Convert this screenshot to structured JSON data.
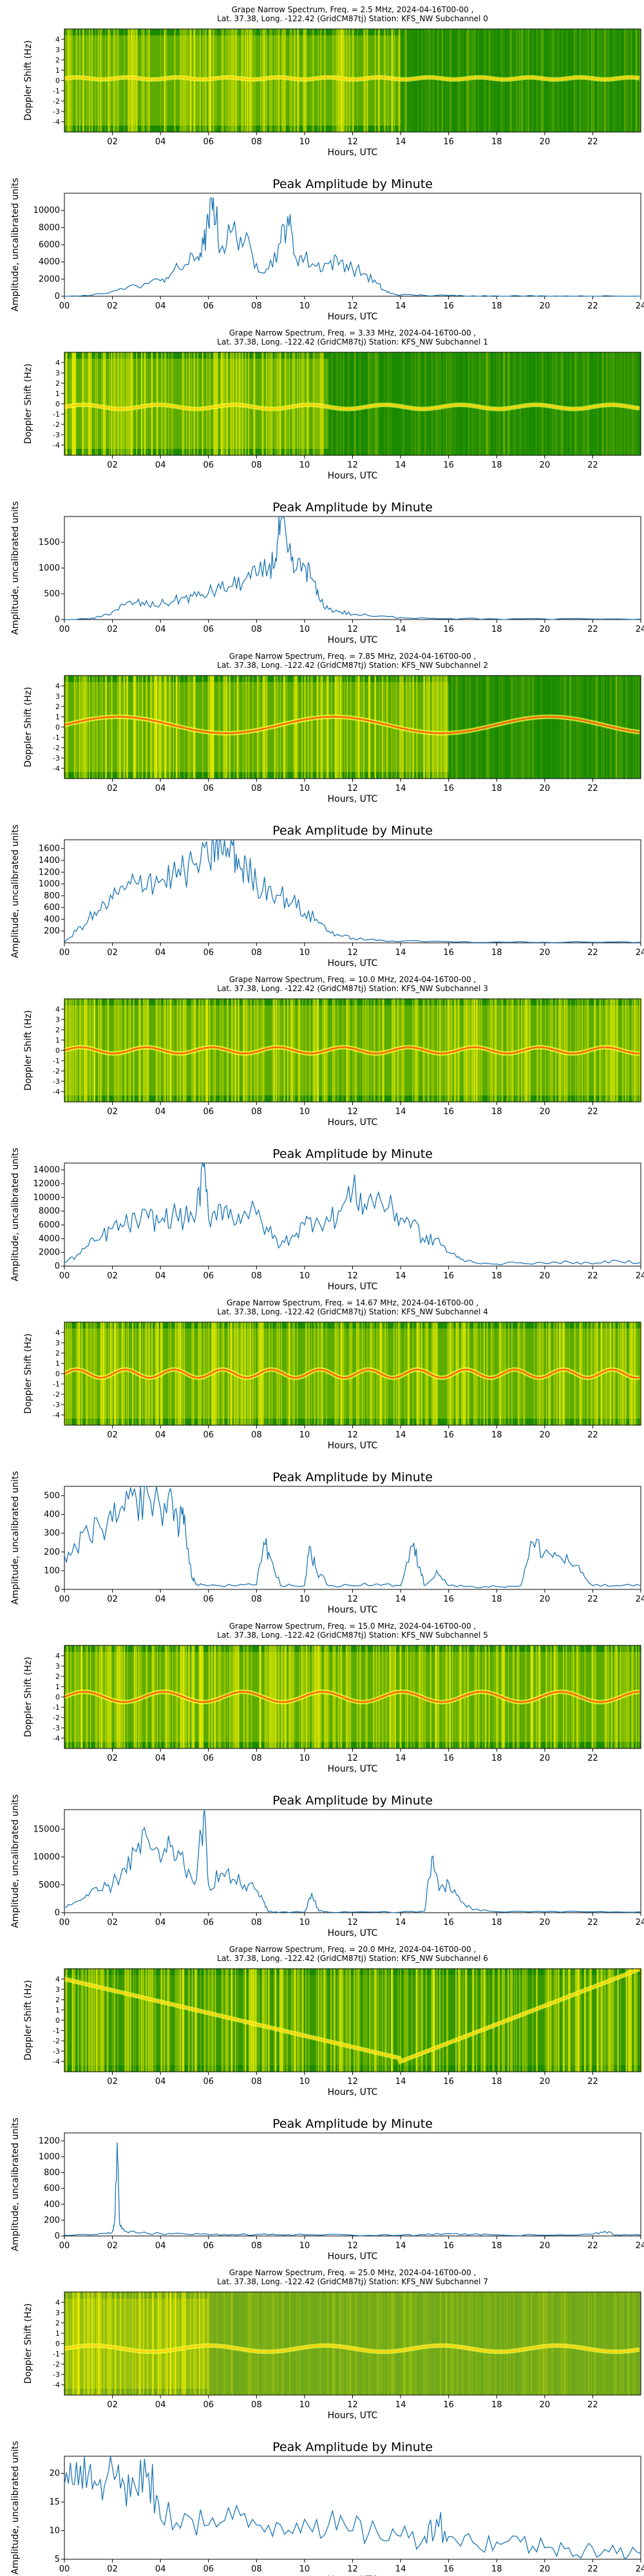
{
  "chart_data": [
    {
      "type": "heatmap",
      "subchannel": 0,
      "title": [
        "Grape Narrow Spectrum, Freq. = 2.5 MHz, 2024-04-16T00-00 ,",
        "Lat.  37.38, Long. -122.42 (GridCM87tj) Station: KFS_NW Subchannel 0"
      ],
      "xlabel": "Hours, UTC",
      "ylabel": "Doppler Shift (Hz)",
      "xticks": [
        "02",
        "04",
        "06",
        "08",
        "10",
        "12",
        "14",
        "16",
        "18",
        "20",
        "22"
      ],
      "yticks": [
        "4",
        "3",
        "2",
        "1",
        "0",
        "-1",
        "-2",
        "-3",
        "-4"
      ],
      "xlim": [
        0,
        24
      ],
      "ylim": [
        -5,
        5
      ]
    },
    {
      "type": "line",
      "subchannel": 0,
      "title": "Peak Amplitude by Minute",
      "xlabel": "Hours, UTC",
      "ylabel": "Amplitude, uncalibrated units",
      "xlim": [
        0,
        24
      ],
      "ylim": [
        0,
        12000
      ],
      "yticks": [
        0,
        2000,
        4000,
        6000,
        8000,
        10000
      ],
      "x": [
        0,
        1,
        2,
        3,
        4,
        4.5,
        5,
        5.5,
        5.8,
        6,
        6.2,
        6.5,
        7,
        7.5,
        8,
        8.5,
        9,
        9.3,
        9.6,
        10,
        10.5,
        11,
        11.5,
        12,
        12.5,
        13,
        13.3,
        13.6,
        14,
        15,
        16,
        17,
        18,
        19,
        20,
        21,
        22,
        23,
        24
      ],
      "y": [
        0,
        50,
        600,
        1200,
        1800,
        2800,
        3600,
        4500,
        6000,
        8300,
        11500,
        5400,
        7700,
        6400,
        3800,
        3200,
        6200,
        9300,
        4700,
        4400,
        3500,
        3800,
        4100,
        3200,
        2600,
        1500,
        700,
        300,
        150,
        100,
        80,
        50,
        40,
        30,
        20,
        15,
        10,
        10,
        10
      ]
    },
    {
      "type": "heatmap",
      "subchannel": 1,
      "title": [
        "Grape Narrow Spectrum, Freq. = 3.33 MHz, 2024-04-16T00-00 ,",
        "Lat.  37.38, Long. -122.42 (GridCM87tj) Station: KFS_NW Subchannel 1"
      ],
      "xlabel": "Hours, UTC",
      "ylabel": "Doppler Shift (Hz)",
      "xticks": [
        "02",
        "04",
        "06",
        "08",
        "10",
        "12",
        "14",
        "16",
        "18",
        "20",
        "22"
      ],
      "yticks": [
        "4",
        "3",
        "2",
        "1",
        "0",
        "-1",
        "-2",
        "-3",
        "-4"
      ],
      "xlim": [
        0,
        24
      ],
      "ylim": [
        -5,
        5
      ]
    },
    {
      "type": "line",
      "subchannel": 1,
      "title": "Peak Amplitude by Minute",
      "xlabel": "Hours, UTC",
      "ylabel": "Amplitude, uncalibrated units",
      "xlim": [
        0,
        24
      ],
      "ylim": [
        0,
        2000
      ],
      "yticks": [
        0,
        500,
        1000,
        1500
      ],
      "x": [
        0,
        1,
        1.5,
        2,
        2.5,
        3,
        3.5,
        4,
        4.5,
        5,
        5.5,
        6,
        6.5,
        7,
        7.5,
        8,
        8.5,
        8.8,
        9,
        9.3,
        9.6,
        10,
        10.3,
        10.6,
        11,
        11.5,
        12,
        13,
        14,
        15,
        16,
        18,
        20,
        22,
        24
      ],
      "y": [
        0,
        10,
        50,
        150,
        280,
        330,
        280,
        300,
        350,
        420,
        450,
        520,
        600,
        650,
        760,
        850,
        1000,
        1200,
        1900,
        1300,
        950,
        1050,
        800,
        400,
        200,
        150,
        100,
        60,
        40,
        30,
        20,
        10,
        10,
        10,
        10
      ]
    },
    {
      "type": "heatmap",
      "subchannel": 2,
      "title": [
        "Grape Narrow Spectrum, Freq. = 7.85 MHz, 2024-04-16T00-00 ,",
        "Lat.  37.38, Long. -122.42 (GridCM87tj) Station: KFS_NW Subchannel 2"
      ],
      "xlabel": "Hours, UTC",
      "ylabel": "Doppler Shift (Hz)",
      "xticks": [
        "02",
        "04",
        "06",
        "08",
        "10",
        "12",
        "14",
        "16",
        "18",
        "20",
        "22"
      ],
      "yticks": [
        "4",
        "3",
        "2",
        "1",
        "0",
        "-1",
        "-2",
        "-3",
        "-4"
      ],
      "xlim": [
        0,
        24
      ],
      "ylim": [
        -5,
        5
      ]
    },
    {
      "type": "line",
      "subchannel": 2,
      "title": "Peak Amplitude by Minute",
      "xlabel": "Hours, UTC",
      "ylabel": "Amplitude, uncalibrated units",
      "xlim": [
        0,
        24
      ],
      "ylim": [
        0,
        1750
      ],
      "yticks": [
        200,
        400,
        600,
        800,
        1000,
        1200,
        1400,
        1600
      ],
      "x": [
        0,
        0.5,
        1,
        1.5,
        2,
        2.5,
        3,
        3.5,
        4,
        4.5,
        5,
        5.5,
        6,
        6.3,
        6.6,
        7,
        7.3,
        7.6,
        8,
        8.5,
        9,
        9.5,
        10,
        10.5,
        11,
        11.5,
        12,
        13,
        14,
        16,
        18,
        20,
        22,
        24
      ],
      "y": [
        0,
        200,
        400,
        550,
        750,
        900,
        1000,
        1100,
        1050,
        1150,
        1200,
        1350,
        1400,
        1700,
        1500,
        1650,
        1300,
        1250,
        1000,
        950,
        800,
        700,
        500,
        400,
        200,
        120,
        80,
        40,
        25,
        20,
        15,
        10,
        10,
        10
      ]
    },
    {
      "type": "heatmap",
      "subchannel": 3,
      "title": [
        "Grape Narrow Spectrum, Freq. = 10.0 MHz, 2024-04-16T00-00 ,",
        "Lat.  37.38, Long. -122.42 (GridCM87tj) Station: KFS_NW Subchannel 3"
      ],
      "xlabel": "Hours, UTC",
      "ylabel": "Doppler Shift (Hz)",
      "xticks": [
        "02",
        "04",
        "06",
        "08",
        "10",
        "12",
        "14",
        "16",
        "18",
        "20",
        "22"
      ],
      "yticks": [
        "4",
        "3",
        "2",
        "1",
        "0",
        "-1",
        "-2",
        "-3",
        "-4"
      ],
      "xlim": [
        0,
        24
      ],
      "ylim": [
        -5,
        5
      ]
    },
    {
      "type": "line",
      "subchannel": 3,
      "title": "Peak Amplitude by Minute",
      "xlabel": "Hours, UTC",
      "ylabel": "Amplitude, uncalibrated units",
      "xlim": [
        0,
        24
      ],
      "ylim": [
        0,
        15000
      ],
      "yticks": [
        0,
        2000,
        4000,
        6000,
        8000,
        10000,
        12000,
        14000
      ],
      "x": [
        0,
        0.5,
        1,
        1.5,
        2,
        2.5,
        3,
        3.5,
        4,
        4.5,
        5,
        5.5,
        5.8,
        6,
        6.5,
        7,
        7.5,
        8,
        8.5,
        9,
        9.5,
        10,
        10.5,
        11,
        11.5,
        12,
        12.5,
        13,
        13.5,
        14,
        14.5,
        15,
        15.5,
        16,
        16.5,
        17,
        18,
        19,
        20,
        21,
        22,
        23,
        24
      ],
      "y": [
        500,
        1500,
        3000,
        4000,
        5500,
        6000,
        6500,
        7000,
        6500,
        7500,
        6800,
        8000,
        14500,
        7000,
        9000,
        7000,
        8000,
        7500,
        5000,
        3000,
        4500,
        6000,
        7000,
        6500,
        8000,
        11000,
        9000,
        10000,
        8500,
        7000,
        6500,
        3500,
        4000,
        2000,
        1000,
        600,
        300,
        500,
        400,
        600,
        300,
        800,
        500
      ]
    },
    {
      "type": "heatmap",
      "subchannel": 4,
      "title": [
        "Grape Narrow Spectrum, Freq. = 14.67 MHz, 2024-04-16T00-00 ,",
        "Lat.  37.38, Long. -122.42 (GridCM87tj) Station: KFS_NW Subchannel 4"
      ],
      "xlabel": "Hours, UTC",
      "ylabel": "Doppler Shift (Hz)",
      "xticks": [
        "02",
        "04",
        "06",
        "08",
        "10",
        "12",
        "14",
        "16",
        "18",
        "20",
        "22"
      ],
      "yticks": [
        "4",
        "3",
        "2",
        "1",
        "0",
        "-1",
        "-2",
        "-3",
        "-4"
      ],
      "xlim": [
        0,
        24
      ],
      "ylim": [
        -5,
        5
      ]
    },
    {
      "type": "line",
      "subchannel": 4,
      "title": "Peak Amplitude by Minute",
      "xlabel": "Hours, UTC",
      "ylabel": "Amplitude, uncalibrated units",
      "xlim": [
        0,
        24
      ],
      "ylim": [
        0,
        550
      ],
      "yticks": [
        0,
        100,
        200,
        300,
        400,
        500
      ],
      "x": [
        0,
        0.5,
        1,
        1.5,
        2,
        2.5,
        3,
        3.5,
        4,
        4.5,
        4.8,
        5,
        5.3,
        5.5,
        6,
        7,
        8,
        8.3,
        8.5,
        9,
        10,
        10.2,
        10.5,
        11,
        12,
        13,
        14,
        14.5,
        14.8,
        15,
        15.5,
        16,
        17,
        18,
        19,
        19.5,
        20,
        20.5,
        21,
        21.5,
        22,
        23,
        24
      ],
      "y": [
        180,
        220,
        300,
        330,
        360,
        420,
        480,
        500,
        430,
        470,
        350,
        400,
        60,
        30,
        20,
        20,
        25,
        250,
        200,
        20,
        20,
        230,
        100,
        20,
        20,
        30,
        20,
        230,
        120,
        20,
        100,
        20,
        15,
        15,
        20,
        250,
        200,
        180,
        150,
        90,
        20,
        20,
        20
      ]
    },
    {
      "type": "heatmap",
      "subchannel": 5,
      "title": [
        "Grape Narrow Spectrum, Freq. = 15.0 MHz, 2024-04-16T00-00 ,",
        "Lat.  37.38, Long. -122.42 (GridCM87tj) Station: KFS_NW Subchannel 5"
      ],
      "xlabel": "Hours, UTC",
      "ylabel": "Doppler Shift (Hz)",
      "xticks": [
        "02",
        "04",
        "06",
        "08",
        "10",
        "12",
        "14",
        "16",
        "18",
        "20",
        "22"
      ],
      "yticks": [
        "4",
        "3",
        "2",
        "1",
        "0",
        "-1",
        "-2",
        "-3",
        "-4"
      ],
      "xlim": [
        0,
        24
      ],
      "ylim": [
        -5,
        5
      ]
    },
    {
      "type": "line",
      "subchannel": 5,
      "title": "Peak Amplitude by Minute",
      "xlabel": "Hours, UTC",
      "ylabel": "Amplitude, uncalibrated units",
      "xlim": [
        0,
        24
      ],
      "ylim": [
        0,
        18500
      ],
      "yticks": [
        0,
        5000,
        10000,
        15000
      ],
      "x": [
        0,
        0.5,
        1,
        1.5,
        2,
        2.5,
        3,
        3.5,
        4,
        4.5,
        5,
        5.5,
        5.8,
        6,
        6.5,
        7,
        7.5,
        8,
        8.3,
        8.5,
        9,
        10,
        10.3,
        10.6,
        11,
        12,
        14,
        15,
        15.3,
        15.6,
        16,
        16.5,
        17,
        18,
        20,
        22,
        24
      ],
      "y": [
        1000,
        2000,
        3000,
        4000,
        5000,
        8000,
        11000,
        13000,
        9000,
        12000,
        8000,
        6000,
        17800,
        5000,
        7000,
        6000,
        5000,
        4000,
        2000,
        200,
        100,
        100,
        3500,
        300,
        100,
        100,
        100,
        300,
        10000,
        4000,
        5500,
        2000,
        500,
        200,
        150,
        150,
        150
      ]
    },
    {
      "type": "heatmap",
      "subchannel": 6,
      "title": [
        "Grape Narrow Spectrum, Freq. = 20.0 MHz, 2024-04-16T00-00 ,",
        "Lat.  37.38, Long. -122.42 (GridCM87tj) Station: KFS_NW Subchannel 6"
      ],
      "xlabel": "Hours, UTC",
      "ylabel": "Doppler Shift (Hz)",
      "xticks": [
        "02",
        "04",
        "06",
        "08",
        "10",
        "12",
        "14",
        "16",
        "18",
        "20",
        "22"
      ],
      "yticks": [
        "4",
        "3",
        "2",
        "1",
        "0",
        "-1",
        "-2",
        "-3",
        "-4"
      ],
      "xlim": [
        0,
        24
      ],
      "ylim": [
        -5,
        5
      ]
    },
    {
      "type": "line",
      "subchannel": 6,
      "title": "Peak Amplitude by Minute",
      "xlabel": "Hours, UTC",
      "ylabel": "Amplitude, uncalibrated units",
      "xlim": [
        0,
        24
      ],
      "ylim": [
        0,
        1300
      ],
      "yticks": [
        0,
        200,
        400,
        600,
        800,
        1000,
        1200
      ],
      "x": [
        0,
        1,
        1.5,
        2,
        2.1,
        2.2,
        2.3,
        2.5,
        3,
        4,
        5,
        6,
        7,
        8,
        9,
        10,
        12,
        14,
        15,
        16,
        17,
        18,
        20,
        22,
        22.5,
        23,
        24
      ],
      "y": [
        10,
        15,
        30,
        50,
        200,
        1180,
        150,
        60,
        40,
        30,
        25,
        20,
        20,
        20,
        15,
        15,
        10,
        10,
        15,
        30,
        20,
        15,
        10,
        20,
        60,
        15,
        10
      ]
    },
    {
      "type": "heatmap",
      "subchannel": 7,
      "title": [
        "Grape Narrow Spectrum, Freq. = 25.0 MHz, 2024-04-16T00-00 ,",
        "Lat.  37.38, Long. -122.42 (GridCM87tj) Station: KFS_NW Subchannel 7"
      ],
      "xlabel": "Hours, UTC",
      "ylabel": "Doppler Shift (Hz)",
      "xticks": [
        "02",
        "04",
        "06",
        "08",
        "10",
        "12",
        "14",
        "16",
        "18",
        "20",
        "22"
      ],
      "yticks": [
        "4",
        "3",
        "2",
        "1",
        "0",
        "-1",
        "-2",
        "-3",
        "-4"
      ],
      "xlim": [
        0,
        24
      ],
      "ylim": [
        -5,
        5
      ]
    },
    {
      "type": "line",
      "subchannel": 7,
      "title": "Peak Amplitude by Minute",
      "xlabel": "Hours, UTC",
      "ylabel": "Amplitude, uncalibrated units",
      "xlim": [
        0,
        24
      ],
      "ylim": [
        5,
        23
      ],
      "yticks": [
        5,
        10,
        15,
        20
      ],
      "x": [
        0,
        0.5,
        1,
        1.5,
        2,
        2.5,
        3,
        3.5,
        4,
        5,
        6,
        7,
        8,
        9,
        10,
        11,
        12,
        13,
        14,
        15,
        15.5,
        16,
        17,
        18,
        19,
        20,
        21,
        22,
        23,
        24
      ],
      "y": [
        18,
        22,
        20,
        19,
        21,
        18,
        17,
        20,
        12,
        13,
        11,
        12,
        11,
        11,
        12,
        11,
        10,
        10,
        9,
        9,
        12,
        9,
        8,
        8,
        8,
        7,
        7,
        7,
        6,
        6
      ]
    }
  ],
  "colors": {
    "line": "#1f77b4",
    "heatmap_bg": "#1a8a00",
    "trace_low": "#e6f000",
    "trace_high": "#e60000"
  }
}
